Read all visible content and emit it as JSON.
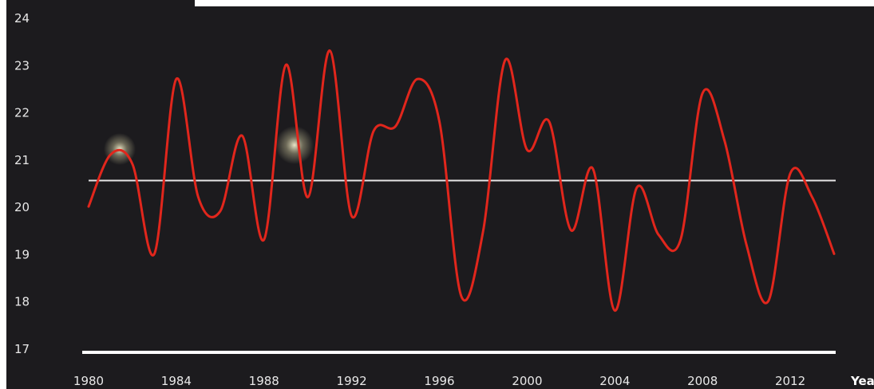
{
  "chart_data": {
    "type": "line",
    "title": "",
    "xlabel": "Yea",
    "ylabel": "",
    "x_ticks": [
      "1980",
      "1984",
      "1988",
      "1992",
      "1996",
      "2000",
      "2004",
      "2008",
      "2012"
    ],
    "y_ticks": [
      "24",
      "23",
      "22",
      "21",
      "20",
      "19",
      "18",
      "17"
    ],
    "xlim": [
      1979,
      2015
    ],
    "ylim": [
      17,
      24
    ],
    "grid": false,
    "reference_line": {
      "value": 20.55,
      "color": "#e6e6e6"
    },
    "baseline": {
      "value": 17,
      "color": "#ffffff"
    },
    "series": [
      {
        "color": "#e1261c",
        "x": [
          1980,
          1981,
          1982,
          1983,
          1984,
          1985,
          1986,
          1987,
          1988,
          1989,
          1990,
          1991,
          1992,
          1993,
          1994,
          1995,
          1996,
          1997,
          1998,
          1999,
          2000,
          2001,
          2002,
          2003,
          2004,
          2005,
          2006,
          2007,
          2008,
          2009,
          2010,
          2011,
          2012,
          2013,
          2014
        ],
        "values": [
          20.0,
          21.1,
          20.9,
          19.0,
          22.7,
          20.2,
          19.9,
          21.5,
          19.3,
          23.0,
          20.2,
          23.3,
          19.8,
          21.6,
          21.7,
          22.7,
          21.8,
          18.1,
          19.5,
          23.1,
          21.2,
          21.8,
          19.5,
          20.8,
          17.8,
          20.4,
          19.4,
          19.3,
          22.4,
          21.4,
          19.2,
          18.0,
          20.7,
          20.2,
          19.0
        ]
      }
    ]
  }
}
